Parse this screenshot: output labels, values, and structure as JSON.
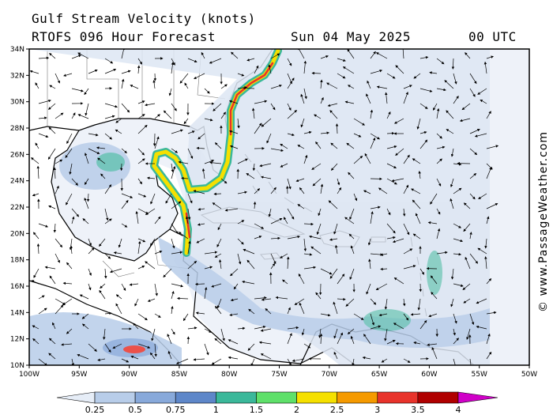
{
  "header": {
    "title": "Gulf Stream Velocity (knots)",
    "model": "RTOFS 096 Hour Forecast",
    "date": "Sun 04 May 2025",
    "time": "00 UTC"
  },
  "credit": "© www.PassageWeather.com",
  "map": {
    "lat_labels": [
      "34N",
      "32N",
      "30N",
      "28N",
      "26N",
      "24N",
      "22N",
      "20N",
      "18N",
      "16N",
      "14N",
      "12N",
      "10N"
    ],
    "lon_labels": [
      "100W",
      "95W",
      "90W",
      "85W",
      "80W",
      "75W",
      "70W",
      "65W",
      "60W",
      "55W",
      "50W"
    ]
  },
  "colorbar": {
    "ticks": [
      "0.25",
      "0.5",
      "0.75",
      "1",
      "1.5",
      "2",
      "2.5",
      "3",
      "3.5",
      "4"
    ],
    "colors": [
      "#e6edf7",
      "#b8cde9",
      "#88a9da",
      "#5e87c9",
      "#3bb89a",
      "#5fe06a",
      "#f5e000",
      "#f59a00",
      "#e8332b",
      "#b00000",
      "#d000c8"
    ]
  }
}
